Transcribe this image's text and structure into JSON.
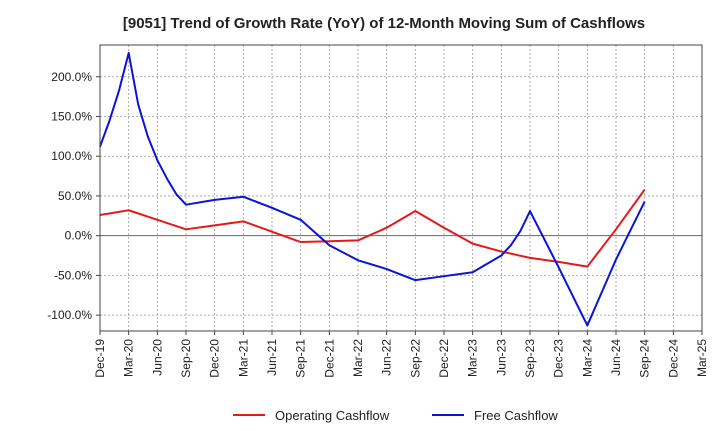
{
  "chart_data": {
    "type": "line",
    "title": "[9051]  Trend of Growth Rate (YoY) of 12-Month Moving Sum of Cashflows",
    "xlabel": "",
    "ylabel": "",
    "categories": [
      "Dec-19",
      "Mar-20",
      "Jun-20",
      "Sep-20",
      "Dec-20",
      "Mar-21",
      "Jun-21",
      "Sep-21",
      "Dec-21",
      "Mar-22",
      "Jun-22",
      "Sep-22",
      "Dec-22",
      "Mar-23",
      "Jun-23",
      "Sep-23",
      "Dec-23",
      "Mar-24",
      "Jun-24",
      "Sep-24",
      "Dec-24",
      "Mar-25"
    ],
    "ylim": [
      -120,
      240
    ],
    "yticks": [
      -100,
      -50,
      0,
      50,
      100,
      150,
      200
    ],
    "ytick_labels": [
      "-100.0%",
      "-50.0%",
      "0.0%",
      "50.0%",
      "100.0%",
      "150.0%",
      "200.0%"
    ],
    "grid": true,
    "legend_position": "bottom",
    "series": [
      {
        "name": "Operating Cashflow",
        "color": "#e31a1c",
        "points": [
          {
            "x": 0,
            "y": 26
          },
          {
            "x": 3,
            "y": 32
          },
          {
            "x": 6,
            "y": 20
          },
          {
            "x": 9,
            "y": 8
          },
          {
            "x": 12,
            "y": 13
          },
          {
            "x": 15,
            "y": 18
          },
          {
            "x": 18,
            "y": 5
          },
          {
            "x": 21,
            "y": -8
          },
          {
            "x": 24,
            "y": -7
          },
          {
            "x": 27,
            "y": -6
          },
          {
            "x": 30,
            "y": 10
          },
          {
            "x": 33,
            "y": 31
          },
          {
            "x": 36,
            "y": 10
          },
          {
            "x": 39,
            "y": -10
          },
          {
            "x": 42,
            "y": -20
          },
          {
            "x": 45,
            "y": -28
          },
          {
            "x": 48,
            "y": -33
          },
          {
            "x": 51,
            "y": -39
          },
          {
            "x": 54,
            "y": 8
          },
          {
            "x": 57,
            "y": 58
          }
        ]
      },
      {
        "name": "Free Cashflow",
        "color": "#0a14d8",
        "points": [
          {
            "x": 0,
            "y": 112
          },
          {
            "x": 1,
            "y": 145
          },
          {
            "x": 2,
            "y": 183
          },
          {
            "x": 3,
            "y": 230
          },
          {
            "x": 4,
            "y": 165
          },
          {
            "x": 5,
            "y": 125
          },
          {
            "x": 6,
            "y": 95
          },
          {
            "x": 7,
            "y": 72
          },
          {
            "x": 8,
            "y": 52
          },
          {
            "x": 9,
            "y": 39
          },
          {
            "x": 12,
            "y": 45
          },
          {
            "x": 15,
            "y": 49
          },
          {
            "x": 18,
            "y": 35
          },
          {
            "x": 21,
            "y": 20
          },
          {
            "x": 24,
            "y": -12
          },
          {
            "x": 27,
            "y": -31
          },
          {
            "x": 30,
            "y": -42
          },
          {
            "x": 33,
            "y": -56
          },
          {
            "x": 36,
            "y": -51
          },
          {
            "x": 39,
            "y": -46
          },
          {
            "x": 42,
            "y": -25
          },
          {
            "x": 43,
            "y": -12
          },
          {
            "x": 44,
            "y": 6
          },
          {
            "x": 45,
            "y": 31
          },
          {
            "x": 48,
            "y": -40
          },
          {
            "x": 51,
            "y": -113
          },
          {
            "x": 54,
            "y": -30
          },
          {
            "x": 57,
            "y": 43
          }
        ]
      }
    ]
  }
}
